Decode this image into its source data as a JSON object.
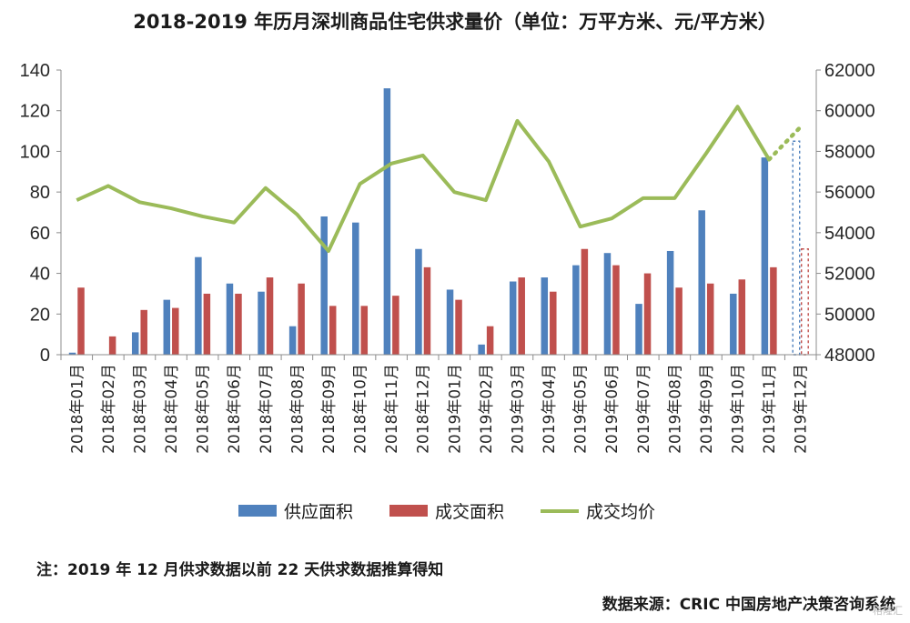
{
  "chart_data": {
    "type": "bar",
    "title": "2018-2019 年历月深圳商品住宅供求量价（单位：万平方米、元/平方米）",
    "categories": [
      "2018年01月",
      "2018年02月",
      "2018年03月",
      "2018年04月",
      "2018年05月",
      "2018年06月",
      "2018年07月",
      "2018年08月",
      "2018年09月",
      "2018年10月",
      "2018年11月",
      "2018年12月",
      "2019年01月",
      "2019年02月",
      "2019年03月",
      "2019年04月",
      "2019年05月",
      "2019年06月",
      "2019年07月",
      "2019年08月",
      "2019年09月",
      "2019年10月",
      "2019年11月",
      "2019年12月"
    ],
    "left_axis": {
      "ylim": [
        0,
        140
      ],
      "ticks": [
        "0",
        "20",
        "40",
        "60",
        "80",
        "100",
        "120",
        "140"
      ]
    },
    "right_axis": {
      "ylim": [
        48000,
        62000
      ],
      "ticks": [
        "48000",
        "50000",
        "52000",
        "54000",
        "56000",
        "58000",
        "60000",
        "62000"
      ]
    },
    "series": [
      {
        "name": "供应面积",
        "type": "bar",
        "axis": "left",
        "color": "#4f81bd",
        "values": [
          1,
          0,
          11,
          27,
          48,
          35,
          31,
          14,
          68,
          65,
          131,
          52,
          32,
          5,
          36,
          38,
          44,
          50,
          25,
          51,
          71,
          30,
          97,
          105
        ]
      },
      {
        "name": "成交面积",
        "type": "bar",
        "axis": "left",
        "color": "#c0504d",
        "values": [
          33,
          9,
          22,
          23,
          30,
          30,
          38,
          35,
          24,
          24,
          29,
          43,
          27,
          14,
          38,
          31,
          52,
          44,
          40,
          33,
          35,
          37,
          43,
          52
        ]
      },
      {
        "name": "成交均价",
        "type": "line",
        "axis": "right",
        "color": "#9bbb59",
        "values": [
          55600,
          56300,
          55500,
          55200,
          54800,
          54500,
          56200,
          54900,
          53100,
          56400,
          57400,
          57800,
          56000,
          55600,
          59500,
          57500,
          54300,
          54700,
          55700,
          55700,
          57900,
          60200,
          57600,
          59200
        ]
      }
    ],
    "estimated_category": "2019年12月",
    "grid": false,
    "legend": "bottom"
  },
  "note": "注：2019 年 12 月供求数据以前 22 天供求数据推算得知",
  "source": "数据来源：CRIC 中国房地产决策咨询系统",
  "watermark": "格隆汇"
}
